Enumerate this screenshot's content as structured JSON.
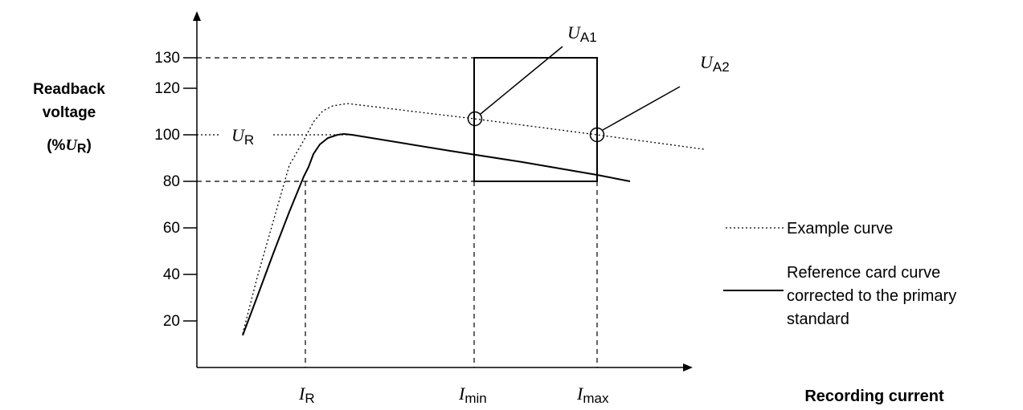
{
  "y_axis": {
    "label_line1": "Readback",
    "label_line2": "voltage",
    "label_line3_open": "(%",
    "label_line3_var": "U",
    "label_line3_sub": "R",
    "label_line3_close": ")",
    "ticks": [
      "20",
      "40",
      "60",
      "80",
      "100",
      "120",
      "130"
    ]
  },
  "x_axis": {
    "label": "Recording current",
    "marks": [
      {
        "var": "I",
        "sub": "R"
      },
      {
        "var": "I",
        "sub": "min"
      },
      {
        "var": "I",
        "sub": "max"
      }
    ]
  },
  "annotations": {
    "ur": {
      "var": "U",
      "sub": "R"
    },
    "ua1": {
      "var": "U",
      "sub": "A1"
    },
    "ua2": {
      "var": "U",
      "sub": "A2"
    }
  },
  "legend": {
    "example": "Example curve",
    "reference_line1": "Reference card curve",
    "reference_line2": "corrected to the primary",
    "reference_line3": "standard"
  }
}
